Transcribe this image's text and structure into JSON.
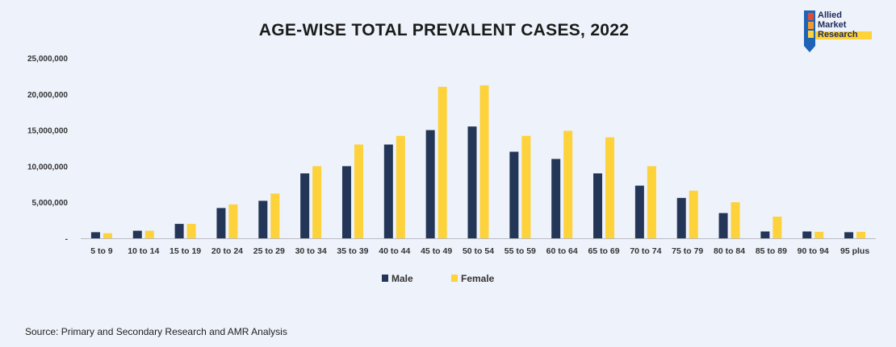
{
  "title": "AGE-WISE TOTAL PREVALENT CASES, 2022",
  "source": "Source: Primary and Secondary Research and AMR Analysis",
  "logo": {
    "lines": [
      "Allied",
      "Market",
      "Research"
    ]
  },
  "colors": {
    "male": "#243657",
    "female": "#fdd23a",
    "axis": "#b9bcc3",
    "background": "#eef2fa"
  },
  "chart_data": {
    "type": "bar",
    "title": "AGE-WISE TOTAL PREVALENT CASES, 2022",
    "xlabel": "",
    "ylabel": "",
    "ylim": [
      0,
      25000000
    ],
    "yticks": [
      0,
      5000000,
      10000000,
      15000000,
      20000000,
      25000000
    ],
    "ytick_labels": [
      "-",
      "5,000,000",
      "10,000,000",
      "15,000,000",
      "20,000,000",
      "25,000,000"
    ],
    "grid": false,
    "legend_position": "bottom",
    "categories": [
      "5 to 9",
      "10 to 14",
      "15 to 19",
      "20 to 24",
      "25 to 29",
      "30 to 34",
      "35 to 39",
      "40 to 44",
      "45 to 49",
      "50 to 54",
      "55 to 59",
      "60 to 64",
      "65 to 69",
      "70 to 74",
      "75 to 79",
      "80 to 84",
      "85 to 89",
      "90 to 94",
      "95 plus"
    ],
    "series": [
      {
        "name": "Male",
        "color": "#243657",
        "values": [
          850000,
          1050000,
          2000000,
          4200000,
          5200000,
          9000000,
          10000000,
          13000000,
          15000000,
          15500000,
          12000000,
          11000000,
          9000000,
          7300000,
          5600000,
          3500000,
          950000,
          950000,
          850000
        ]
      },
      {
        "name": "Female",
        "color": "#fdd23a",
        "values": [
          700000,
          1050000,
          2000000,
          4700000,
          6200000,
          10000000,
          13000000,
          14200000,
          21000000,
          21200000,
          14200000,
          14900000,
          14000000,
          10000000,
          6600000,
          5000000,
          3000000,
          900000,
          900000
        ]
      }
    ]
  }
}
